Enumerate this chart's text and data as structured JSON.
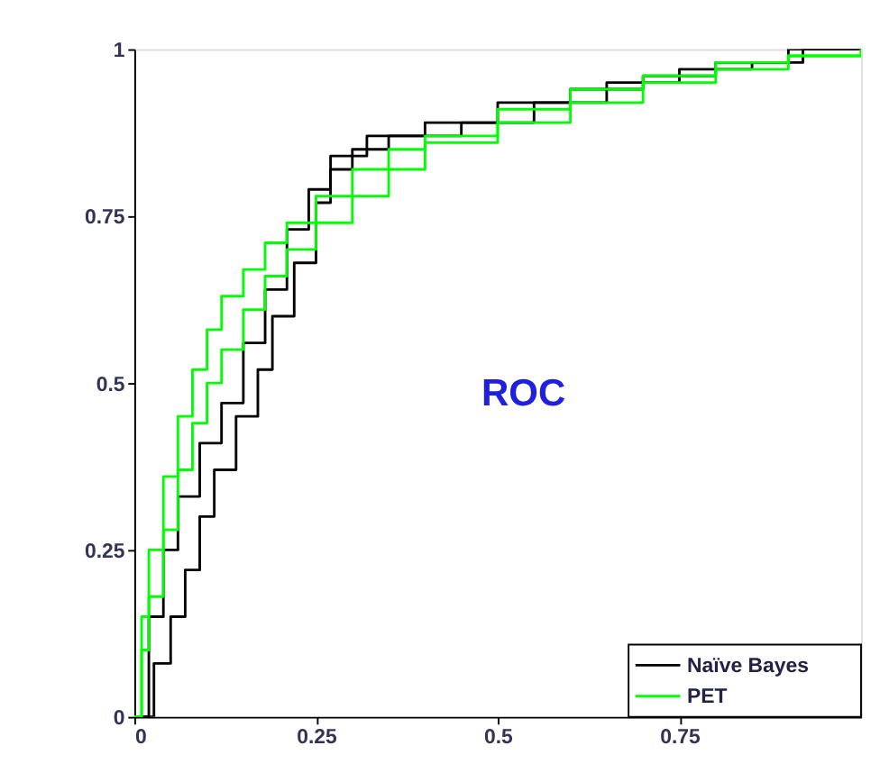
{
  "chart_data": {
    "type": "step",
    "annotations": [
      "ROC"
    ],
    "xlim": [
      0,
      1
    ],
    "xticks": [
      0,
      0.25,
      0.5,
      0.75
    ],
    "ylim": [
      0,
      1
    ],
    "yticks": [
      0,
      0.25,
      0.5,
      0.75,
      1
    ],
    "grid": false,
    "legend": "bottom right",
    "line_style": "solid",
    "series": [
      {
        "name": "Naïve Bayes",
        "color": "#000000",
        "x": [
          0,
          0.027,
          0.05,
          0.07,
          0.09,
          0.11,
          0.14,
          0.17,
          0.19,
          0.22,
          0.25,
          0.27,
          0.3,
          0.35,
          0.45,
          0.55,
          0.65,
          0.75,
          0.85,
          0.92,
          1
        ],
        "values": [
          0,
          0.08,
          0.15,
          0.22,
          0.3,
          0.37,
          0.45,
          0.52,
          0.6,
          0.68,
          0.77,
          0.82,
          0.85,
          0.87,
          0.89,
          0.92,
          0.95,
          0.97,
          0.98,
          1,
          1
        ]
      },
      {
        "color": "#000000",
        "x": [
          0,
          0.02,
          0.04,
          0.06,
          0.09,
          0.12,
          0.15,
          0.18,
          0.21,
          0.24,
          0.27,
          0.32,
          0.4,
          0.5,
          0.6,
          0.7,
          0.8,
          0.9,
          1
        ],
        "values": [
          0,
          0.15,
          0.25,
          0.33,
          0.41,
          0.47,
          0.56,
          0.64,
          0.73,
          0.79,
          0.84,
          0.87,
          0.89,
          0.92,
          0.94,
          0.96,
          0.98,
          1,
          1
        ]
      },
      {
        "name": "PET",
        "color": "#00ff00",
        "x": [
          0,
          0.01,
          0.02,
          0.04,
          0.06,
          0.08,
          0.1,
          0.12,
          0.15,
          0.18,
          0.21,
          0.25,
          0.3,
          0.35,
          0.4,
          0.5,
          0.6,
          0.7,
          0.8,
          0.9,
          1
        ],
        "values": [
          0,
          0.15,
          0.25,
          0.36,
          0.45,
          0.52,
          0.58,
          0.63,
          0.67,
          0.71,
          0.74,
          0.78,
          0.82,
          0.85,
          0.87,
          0.91,
          0.94,
          0.96,
          0.98,
          0.99,
          1
        ]
      },
      {
        "color": "#00ff00",
        "x": [
          0,
          0.01,
          0.02,
          0.04,
          0.06,
          0.08,
          0.1,
          0.12,
          0.15,
          0.18,
          0.21,
          0.25,
          0.3,
          0.35,
          0.4,
          0.5,
          0.6,
          0.7,
          0.8,
          0.9,
          1
        ],
        "values": [
          0,
          0.1,
          0.18,
          0.28,
          0.37,
          0.44,
          0.5,
          0.55,
          0.61,
          0.66,
          0.7,
          0.74,
          0.78,
          0.82,
          0.86,
          0.89,
          0.92,
          0.95,
          0.97,
          0.99,
          1
        ]
      }
    ]
  }
}
